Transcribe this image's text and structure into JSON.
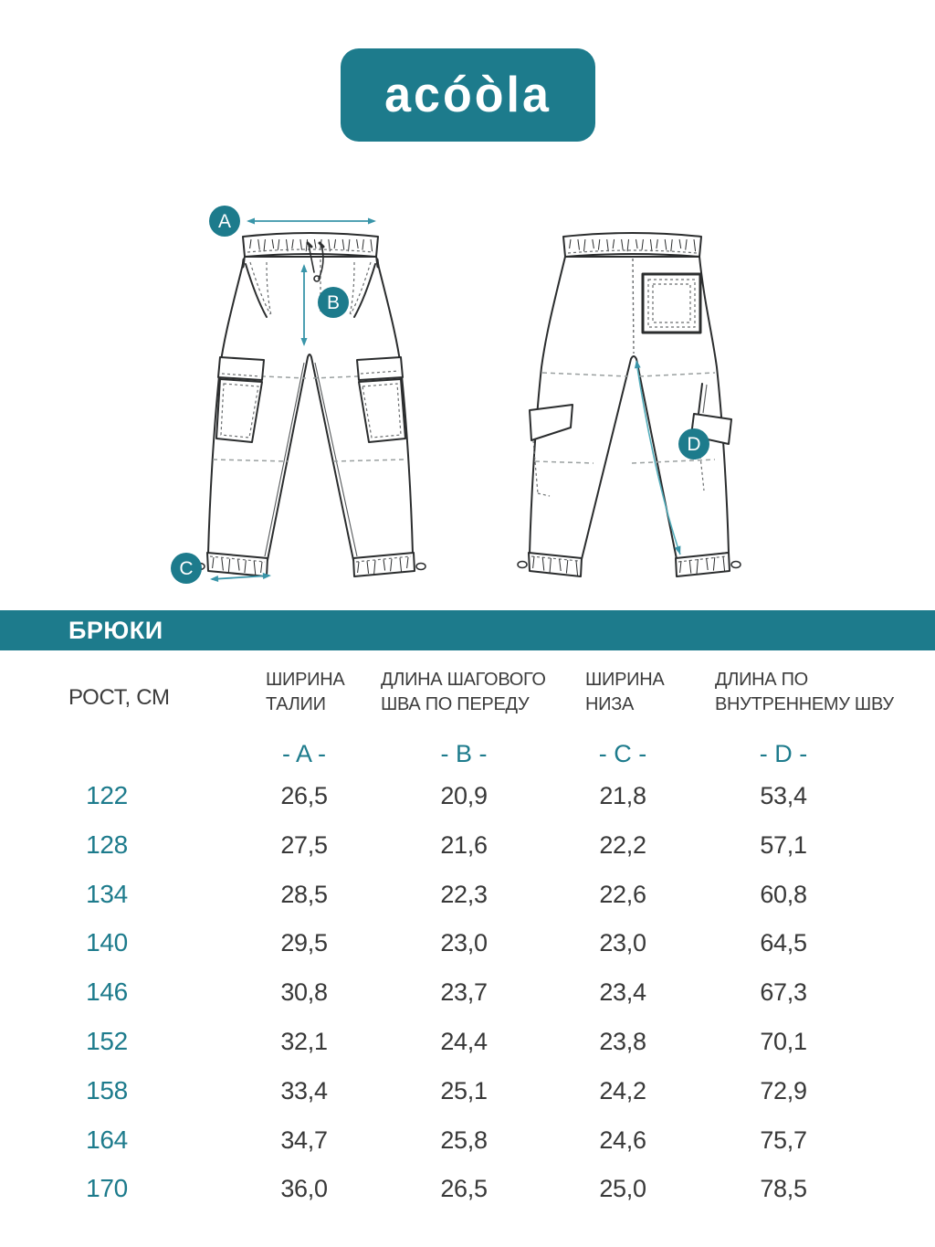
{
  "logo": {
    "brand": "acóòla"
  },
  "colors": {
    "teal": "#1d7b8c",
    "arrow_teal": "#3995a9",
    "inseam_line_teal": "#54aebc",
    "outline_dark": "#2b2d2e",
    "dash_gray": "#9aa0a0",
    "text_dark": "#3c3c3c"
  },
  "diagram": {
    "letters": [
      "A",
      "B",
      "C",
      "D"
    ]
  },
  "table": {
    "section_title": "БРЮКИ",
    "row_header": "РОСТ, СМ",
    "columns": [
      {
        "label_lines": [
          "ШИРИНА",
          "ТАЛИИ"
        ],
        "letter": "- A -"
      },
      {
        "label_lines": [
          "ДЛИНА ШАГОВОГО",
          "ШВА ПО ПЕРЕДУ"
        ],
        "letter": "- B -"
      },
      {
        "label_lines": [
          "ШИРИНА",
          "НИЗА"
        ],
        "letter": "- C -"
      },
      {
        "label_lines": [
          "ДЛИНА ПО",
          "ВНУТРЕННЕМУ ШВУ"
        ],
        "letter": "- D -"
      }
    ],
    "rows": [
      {
        "height": "122",
        "a": "26,5",
        "b": "20,9",
        "c": "21,8",
        "d": "53,4"
      },
      {
        "height": "128",
        "a": "27,5",
        "b": "21,6",
        "c": "22,2",
        "d": "57,1"
      },
      {
        "height": "134",
        "a": "28,5",
        "b": "22,3",
        "c": "22,6",
        "d": "60,8"
      },
      {
        "height": "140",
        "a": "29,5",
        "b": "23,0",
        "c": "23,0",
        "d": "64,5"
      },
      {
        "height": "146",
        "a": "30,8",
        "b": "23,7",
        "c": "23,4",
        "d": "67,3"
      },
      {
        "height": "152",
        "a": "32,1",
        "b": "24,4",
        "c": "23,8",
        "d": "70,1"
      },
      {
        "height": "158",
        "a": "33,4",
        "b": "25,1",
        "c": "24,2",
        "d": "72,9"
      },
      {
        "height": "164",
        "a": "34,7",
        "b": "25,8",
        "c": "24,6",
        "d": "75,7"
      },
      {
        "height": "170",
        "a": "36,0",
        "b": "26,5",
        "c": "25,0",
        "d": "78,5"
      }
    ]
  }
}
